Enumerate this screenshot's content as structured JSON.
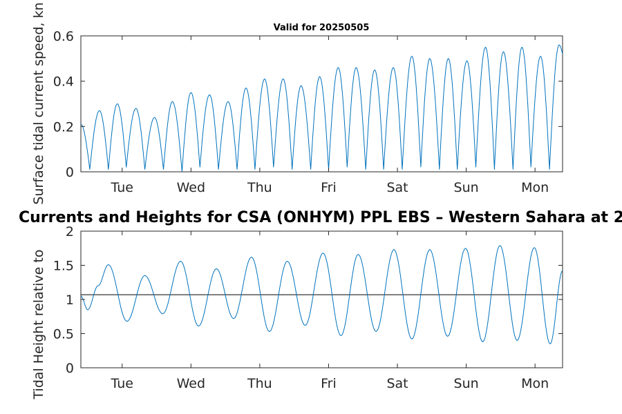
{
  "chart_data": [
    {
      "type": "line",
      "title": "Valid for 20250505",
      "ylabel": "Surface tidal current speed, kn",
      "xlim": [
        0,
        7
      ],
      "ylim": [
        0,
        0.6
      ],
      "yticks": [
        0,
        0.2,
        0.4,
        0.6
      ],
      "ytick_labels": [
        "0",
        "0.2",
        "0.4",
        "0.6"
      ],
      "xticks": [
        0.6,
        1.6,
        2.6,
        3.6,
        4.6,
        5.6,
        6.6
      ],
      "xtick_labels": [
        "Tue",
        "Wed",
        "Thu",
        "Fri",
        "Sat",
        "Sun",
        "Mon"
      ],
      "color": "#0072bd",
      "series": [
        {
          "x": [
            0.0,
            0.13,
            0.27,
            0.4,
            0.53,
            0.66,
            0.8,
            0.93,
            1.07,
            1.2,
            1.33,
            1.47,
            1.6,
            1.73,
            1.87,
            2.0,
            2.14,
            2.27,
            2.4,
            2.53,
            2.67,
            2.8,
            2.94,
            3.07,
            3.2,
            3.34,
            3.47,
            3.6,
            3.74,
            3.87,
            4.0,
            4.14,
            4.27,
            4.4,
            4.54,
            4.67,
            4.81,
            4.94,
            5.07,
            5.21,
            5.34,
            5.47,
            5.61,
            5.74,
            5.88,
            6.01,
            6.14,
            6.28,
            6.41,
            6.54,
            6.68,
            6.81,
            6.95,
            7.0
          ],
          "y": [
            0.21,
            0.01,
            0.27,
            0.01,
            0.3,
            0.02,
            0.28,
            0.01,
            0.24,
            0.01,
            0.31,
            0.0,
            0.35,
            0.02,
            0.34,
            0.01,
            0.31,
            0.01,
            0.37,
            0.01,
            0.41,
            0.02,
            0.41,
            0.01,
            0.38,
            0.01,
            0.42,
            0.01,
            0.46,
            0.02,
            0.46,
            0.01,
            0.45,
            0.01,
            0.46,
            0.01,
            0.51,
            0.02,
            0.5,
            0.01,
            0.5,
            0.01,
            0.49,
            0.02,
            0.55,
            0.01,
            0.53,
            0.01,
            0.55,
            0.02,
            0.51,
            0.01,
            0.56,
            0.52
          ]
        }
      ]
    },
    {
      "type": "line",
      "title": "Currents and Heights for CSA (ONHYM) PPL EBS  – Western Sahara at 2",
      "ylabel": "Tidal Height relative to ",
      "xlim": [
        0,
        7
      ],
      "ylim": [
        0,
        2
      ],
      "yticks": [
        0,
        0.5,
        1,
        1.5,
        2
      ],
      "ytick_labels": [
        "0",
        "0.5",
        "1",
        "1.5",
        "2"
      ],
      "xticks": [
        0.6,
        1.6,
        2.6,
        3.6,
        4.6,
        5.6,
        6.6
      ],
      "xtick_labels": [
        "Tue",
        "Wed",
        "Thu",
        "Fri",
        "Sat",
        "Sun",
        "Mon"
      ],
      "reference_line": 1.07,
      "reference_color": "#000000",
      "color": "#0072bd",
      "series": [
        {
          "x": [
            0.0,
            0.1,
            0.25,
            0.4,
            0.67,
            0.93,
            1.19,
            1.45,
            1.71,
            1.97,
            2.22,
            2.48,
            2.74,
            3.0,
            3.26,
            3.52,
            3.78,
            4.03,
            4.29,
            4.55,
            4.81,
            5.07,
            5.33,
            5.59,
            5.84,
            6.09,
            6.34,
            6.59,
            6.82,
            7.0
          ],
          "y": [
            1.05,
            0.85,
            1.2,
            1.51,
            0.68,
            1.35,
            0.79,
            1.56,
            0.61,
            1.45,
            0.72,
            1.62,
            0.53,
            1.56,
            0.62,
            1.68,
            0.47,
            1.66,
            0.53,
            1.73,
            0.42,
            1.73,
            0.46,
            1.75,
            0.38,
            1.79,
            0.4,
            1.76,
            0.35,
            1.42
          ]
        }
      ]
    }
  ]
}
